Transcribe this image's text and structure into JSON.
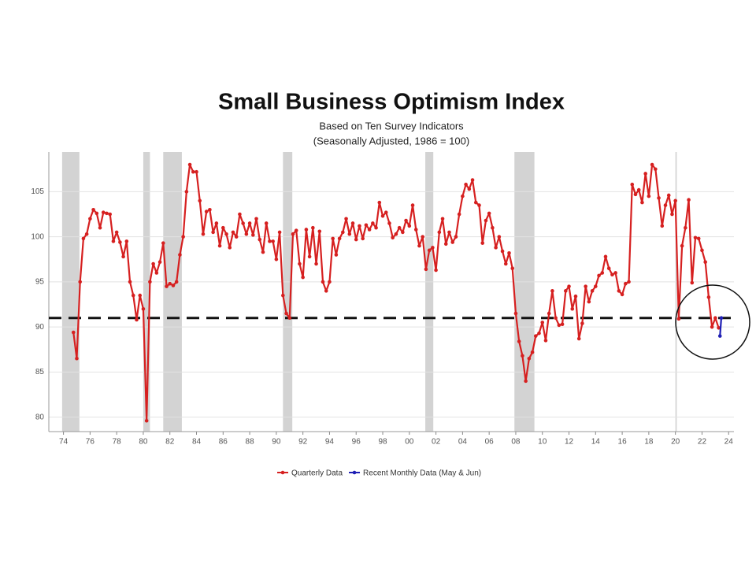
{
  "chart_data": {
    "type": "line",
    "title": "Small Business Optimism Index",
    "subtitle": [
      "Based on Ten Survey Indicators",
      "(Seasonally Adjusted, 1986 = 100)"
    ],
    "xlim": [
      1972.9,
      2024.4
    ],
    "ylim": [
      78.4,
      109.4
    ],
    "yticks": [
      80,
      85,
      90,
      95,
      100,
      105
    ],
    "xticks": [
      {
        "value": 1974,
        "label": "74"
      },
      {
        "value": 1976,
        "label": "76"
      },
      {
        "value": 1978,
        "label": "78"
      },
      {
        "value": 1980,
        "label": "80"
      },
      {
        "value": 1982,
        "label": "82"
      },
      {
        "value": 1984,
        "label": "84"
      },
      {
        "value": 1986,
        "label": "86"
      },
      {
        "value": 1988,
        "label": "88"
      },
      {
        "value": 1990,
        "label": "90"
      },
      {
        "value": 1992,
        "label": "92"
      },
      {
        "value": 1994,
        "label": "94"
      },
      {
        "value": 1996,
        "label": "96"
      },
      {
        "value": 1998,
        "label": "98"
      },
      {
        "value": 2000,
        "label": "00"
      },
      {
        "value": 2002,
        "label": "02"
      },
      {
        "value": 2004,
        "label": "04"
      },
      {
        "value": 2006,
        "label": "06"
      },
      {
        "value": 2008,
        "label": "08"
      },
      {
        "value": 2010,
        "label": "10"
      },
      {
        "value": 2012,
        "label": "12"
      },
      {
        "value": 2014,
        "label": "14"
      },
      {
        "value": 2016,
        "label": "16"
      },
      {
        "value": 2018,
        "label": "18"
      },
      {
        "value": 2020,
        "label": "20"
      },
      {
        "value": 2022,
        "label": "22"
      },
      {
        "value": 2024,
        "label": "24"
      }
    ],
    "grid": true,
    "reference_line": 91,
    "shaded_periods": [
      [
        1973.9,
        1975.2
      ],
      [
        1980.0,
        1980.5
      ],
      [
        1981.5,
        1982.9
      ],
      [
        1990.5,
        1991.2
      ],
      [
        2001.2,
        2001.8
      ],
      [
        2007.9,
        2009.4
      ],
      [
        2020.0,
        2020.1
      ]
    ],
    "series": [
      {
        "name": "Quarterly Data",
        "color": "#d62020",
        "x": [
          1974.75,
          1975,
          1975.25,
          1975.5,
          1975.75,
          1976,
          1976.25,
          1976.5,
          1976.75,
          1977,
          1977.25,
          1977.5,
          1977.75,
          1978,
          1978.25,
          1978.5,
          1978.75,
          1979,
          1979.25,
          1979.5,
          1979.75,
          1980,
          1980.25,
          1980.5,
          1980.75,
          1981,
          1981.25,
          1981.5,
          1981.75,
          1982,
          1982.25,
          1982.5,
          1982.75,
          1983,
          1983.25,
          1983.5,
          1983.75,
          1984,
          1984.25,
          1984.5,
          1984.75,
          1985,
          1985.25,
          1985.5,
          1985.75,
          1986,
          1986.25,
          1986.5,
          1986.75,
          1987,
          1987.25,
          1987.5,
          1987.75,
          1988,
          1988.25,
          1988.5,
          1988.75,
          1989,
          1989.25,
          1989.5,
          1989.75,
          1990,
          1990.25,
          1990.5,
          1990.75,
          1991,
          1991.25,
          1991.5,
          1991.75,
          1992,
          1992.25,
          1992.5,
          1992.75,
          1993,
          1993.25,
          1993.5,
          1993.75,
          1994,
          1994.25,
          1994.5,
          1994.75,
          1995,
          1995.25,
          1995.5,
          1995.75,
          1996,
          1996.25,
          1996.5,
          1996.75,
          1997,
          1997.25,
          1997.5,
          1997.75,
          1998,
          1998.25,
          1998.5,
          1998.75,
          1999,
          1999.25,
          1999.5,
          1999.75,
          2000,
          2000.25,
          2000.5,
          2000.75,
          2001,
          2001.25,
          2001.5,
          2001.75,
          2002,
          2002.25,
          2002.5,
          2002.75,
          2003,
          2003.25,
          2003.5,
          2003.75,
          2004,
          2004.25,
          2004.5,
          2004.75,
          2005,
          2005.25,
          2005.5,
          2005.75,
          2006,
          2006.25,
          2006.5,
          2006.75,
          2007,
          2007.25,
          2007.5,
          2007.75,
          2008,
          2008.25,
          2008.5,
          2008.75,
          2009,
          2009.25,
          2009.5,
          2009.75,
          2010,
          2010.25,
          2010.5,
          2010.75,
          2011,
          2011.25,
          2011.5,
          2011.75,
          2012,
          2012.25,
          2012.5,
          2012.75,
          2013,
          2013.25,
          2013.5,
          2013.75,
          2014,
          2014.25,
          2014.5,
          2014.75,
          2015,
          2015.25,
          2015.5,
          2015.75,
          2016,
          2016.25,
          2016.5,
          2016.75,
          2017,
          2017.25,
          2017.5,
          2017.75,
          2018,
          2018.25,
          2018.5,
          2018.75,
          2019,
          2019.25,
          2019.5,
          2019.75,
          2020,
          2020.25,
          2020.5,
          2020.75,
          2021,
          2021.25,
          2021.5,
          2021.75,
          2022,
          2022.25,
          2022.5,
          2022.75,
          2023,
          2023.25
        ],
        "values": [
          89.4,
          86.5,
          95,
          99.8,
          100.3,
          102,
          103,
          102.6,
          101,
          102.7,
          102.6,
          102.5,
          99.5,
          100.5,
          99.4,
          97.8,
          99.5,
          95,
          93.5,
          90.8,
          93.5,
          92,
          79.6,
          95,
          97,
          96,
          97.2,
          99.3,
          94.5,
          94.8,
          94.6,
          95,
          98,
          100,
          105,
          108,
          107.2,
          107.2,
          104,
          100.3,
          102.8,
          103,
          100.5,
          101.5,
          99,
          101,
          100.3,
          98.8,
          100.5,
          100,
          102.5,
          101.5,
          100.3,
          101.5,
          100.2,
          102,
          99.7,
          98.3,
          101.5,
          99.5,
          99.5,
          97.5,
          100.5,
          93.5,
          91.5,
          91,
          100.3,
          100.7,
          97,
          95.5,
          100.8,
          97.8,
          101,
          97,
          100.6,
          95,
          94,
          95,
          99.8,
          98,
          99.8,
          100.5,
          102,
          100.3,
          101.5,
          99.7,
          101.2,
          99.8,
          101.3,
          100.8,
          101.5,
          101,
          103.8,
          102.3,
          102.7,
          101.5,
          99.9,
          100.3,
          101,
          100.5,
          101.8,
          101.2,
          103.5,
          100.8,
          99,
          100,
          96.4,
          98.5,
          98.8,
          96.3,
          100.5,
          102,
          99.2,
          100.5,
          99.4,
          100,
          102.5,
          104.5,
          105.8,
          105.3,
          106.3,
          103.8,
          103.5,
          99.3,
          101.8,
          102.6,
          101,
          98.8,
          100,
          98.4,
          97,
          98.2,
          96.5,
          91.5,
          88.4,
          86.8,
          84,
          86.5,
          87.2,
          89,
          89.3,
          90.5,
          88.5,
          91.5,
          94,
          91,
          90.2,
          90.3,
          94,
          94.5,
          92,
          93.4,
          88.7,
          90.4,
          94.5,
          92.8,
          94,
          94.5,
          95.7,
          96,
          97.8,
          96.5,
          95.8,
          96,
          94,
          93.6,
          94.8,
          95,
          105.8,
          104.7,
          105.2,
          103.8,
          107,
          104.5,
          108,
          107.5,
          104.3,
          101.2,
          103.5,
          104.6,
          102.5,
          104,
          90.9,
          99,
          101,
          104.1,
          94.9,
          99.9,
          99.8,
          98.5,
          97.2,
          93.3,
          90,
          91,
          89.9
        ]
      },
      {
        "name": "Recent Monthly Data (May & Jun)",
        "color": "#1f1fb4",
        "x": [
          2023.35,
          2023.45
        ],
        "values": [
          89,
          91
        ]
      }
    ]
  }
}
